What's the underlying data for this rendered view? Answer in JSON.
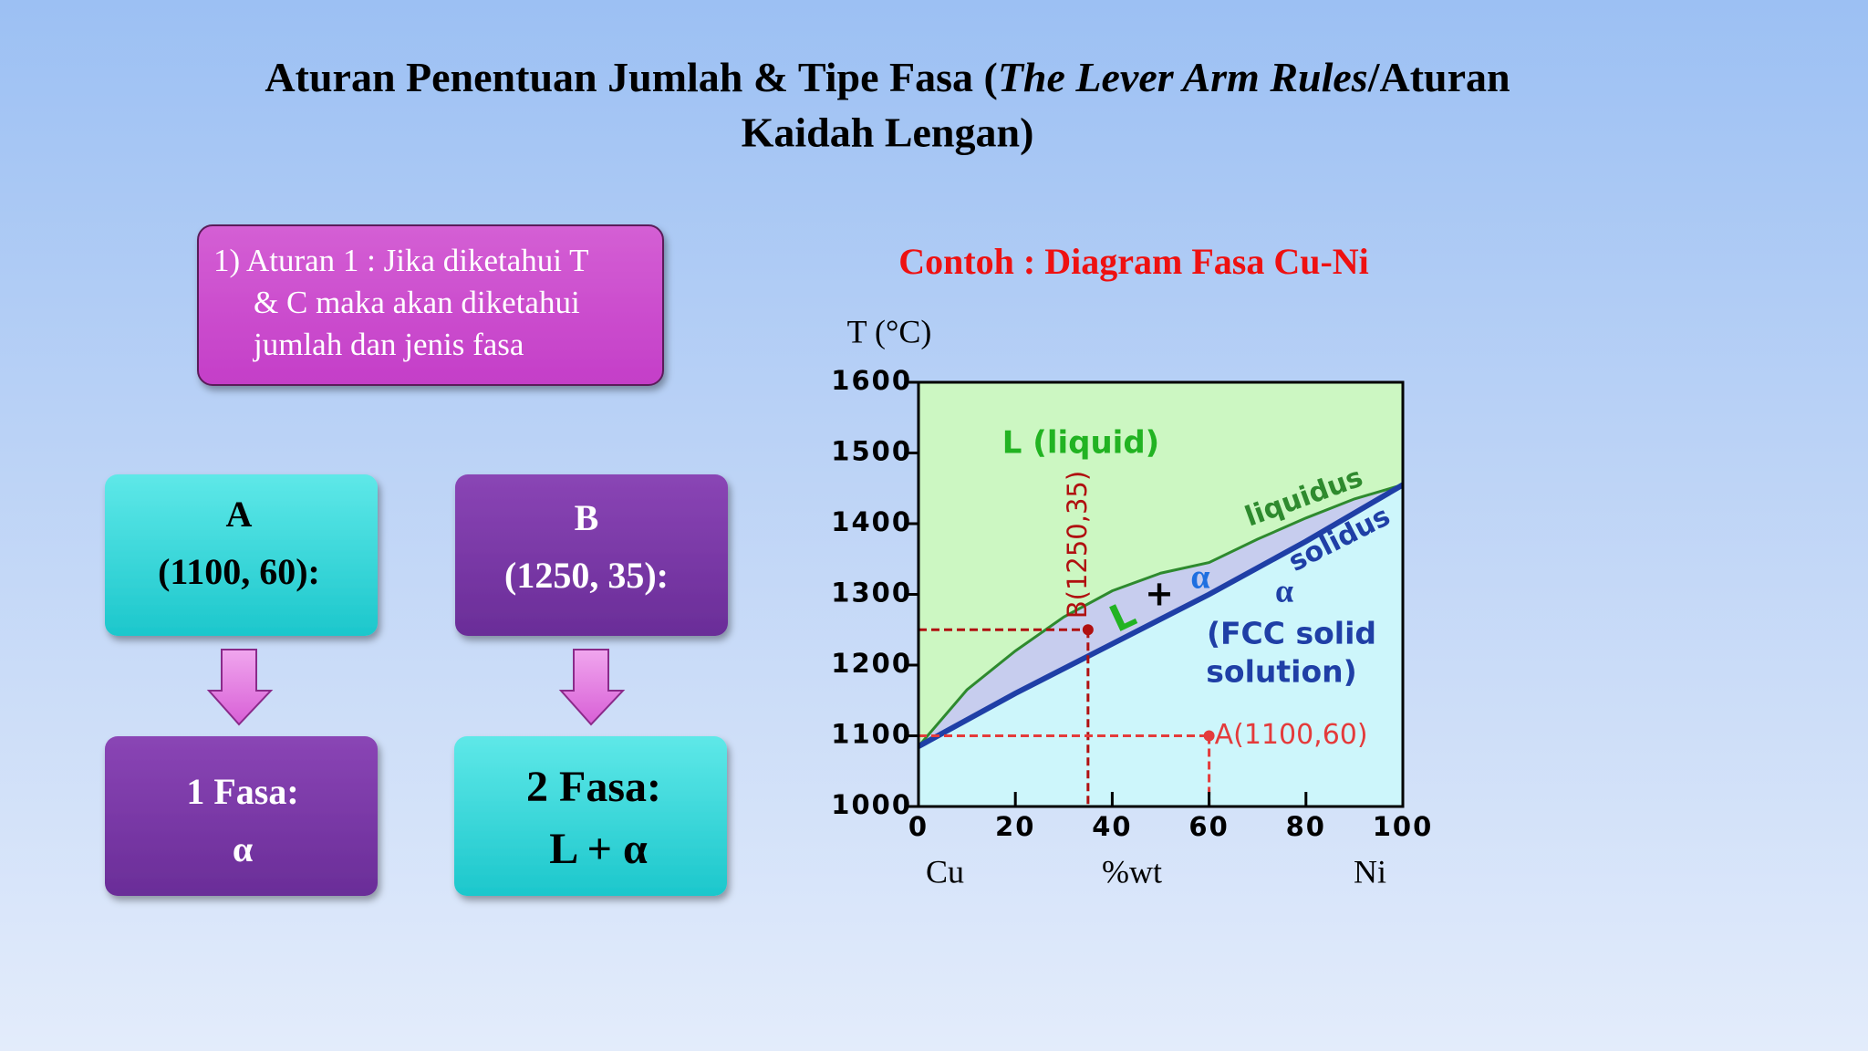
{
  "title": {
    "line1_start": "Aturan Penentuan Jumlah & Tipe Fasa (",
    "line1_italic": "The Lever Arm Rules",
    "line1_end": "/Aturan",
    "line2": "Kaidah Lengan)"
  },
  "rule_box": {
    "lines": [
      "1) Aturan 1 : Jika diketahui T",
      "& C maka akan diketahui",
      "jumlah dan jenis fasa"
    ]
  },
  "case_a": {
    "label": "A",
    "coords": "(1100, 60):",
    "result_title": "1 Fasa:",
    "result_phase": "α"
  },
  "case_b": {
    "label": "B",
    "coords": "(1250, 35):",
    "result_title": "2 Fasa:",
    "result_phase": "L + α"
  },
  "chart_data": {
    "type": "line",
    "title": "Contoh : Diagram Fasa Cu-Ni",
    "y_label": "T (°C)",
    "x_label": "%wt",
    "x_left_label": "Cu",
    "x_right_label": "Ni",
    "xlim": [
      0,
      100
    ],
    "ylim": [
      1000,
      1600
    ],
    "xticks": [
      0,
      20,
      40,
      60,
      80,
      100
    ],
    "yticks": [
      1000,
      1100,
      1200,
      1300,
      1400,
      1500,
      1600
    ],
    "series": [
      {
        "name": "liquidus",
        "color": "#2e8a2e",
        "x": [
          0,
          10,
          20,
          30,
          40,
          50,
          60,
          70,
          80,
          90,
          100
        ],
        "values": [
          1085,
          1165,
          1220,
          1268,
          1305,
          1330,
          1345,
          1378,
          1408,
          1435,
          1455
        ]
      },
      {
        "name": "solidus",
        "color": "#1f3fa6",
        "x": [
          0,
          20,
          40,
          60,
          80,
          100
        ],
        "values": [
          1085,
          1160,
          1230,
          1300,
          1375,
          1455
        ]
      }
    ],
    "points": [
      {
        "label": "B(1250,35)",
        "x": 35,
        "y": 1250,
        "color": "#b01010"
      },
      {
        "label": "A(1100,60)",
        "x": 60,
        "y": 1100,
        "color": "#e43b3b"
      }
    ],
    "annotations": [
      "L (liquid)",
      "α",
      "(FCC solid",
      "solution)",
      "L",
      "+",
      "α"
    ]
  }
}
